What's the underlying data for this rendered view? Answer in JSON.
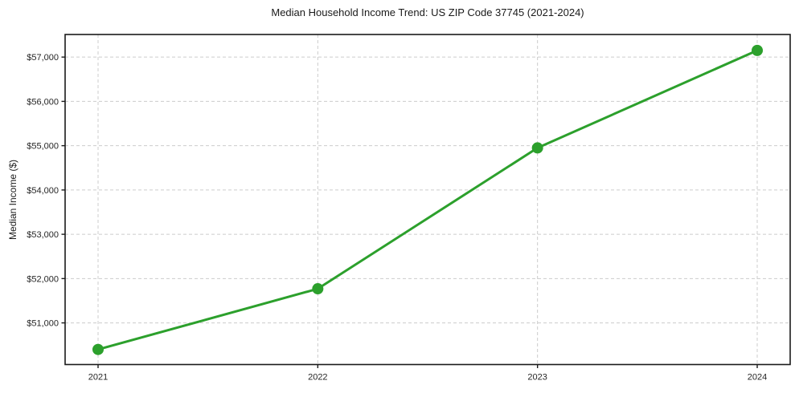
{
  "chart_data": {
    "type": "line",
    "title": "Median Household Income Trend: US ZIP Code 37745 (2021-2024)",
    "xlabel": "",
    "ylabel": "Median Income ($)",
    "x": [
      "2021",
      "2022",
      "2023",
      "2024"
    ],
    "series": [
      {
        "name": "Median household income",
        "values": [
          50400,
          51770,
          54950,
          57150
        ]
      }
    ],
    "yticks": [
      {
        "value": 51000,
        "label": "$51,000"
      },
      {
        "value": 52000,
        "label": "$52,000"
      },
      {
        "value": 53000,
        "label": "$53,000"
      },
      {
        "value": 54000,
        "label": "$54,000"
      },
      {
        "value": 55000,
        "label": "$55,000"
      },
      {
        "value": 56000,
        "label": "$56,000"
      },
      {
        "value": 57000,
        "label": "$57,000"
      }
    ],
    "ylim": [
      50060,
      57510
    ],
    "grid": "dashed gridlines on both axes",
    "legend": "none",
    "marker": "filled circle",
    "colors": {
      "line": "#2ca02c",
      "marker": "#2ca02c",
      "grid": "#cccccc",
      "axis": "#1a1a1a",
      "text": "#262626",
      "background": "#ffffff"
    }
  }
}
